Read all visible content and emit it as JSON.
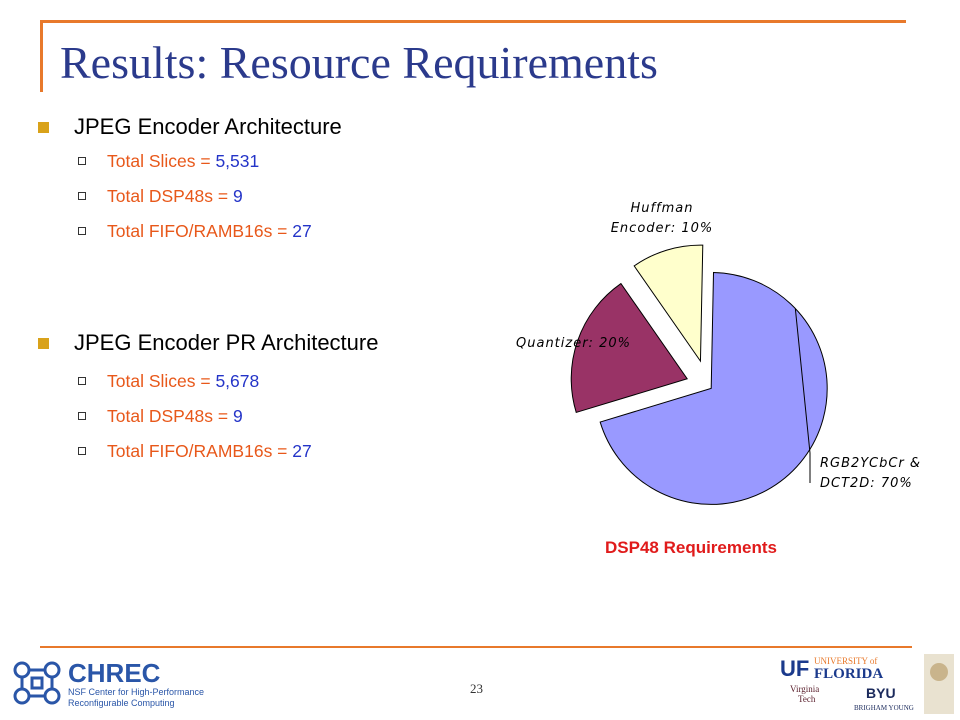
{
  "slide": {
    "title": "Results: Resource Requirements",
    "page_number": "23"
  },
  "sections": [
    {
      "heading": "JPEG Encoder Architecture",
      "items": [
        {
          "label": "Total Slices = ",
          "value": "5,531"
        },
        {
          "label": "Total DSP48s = ",
          "value": "9"
        },
        {
          "label": "Total FIFO/RAMB16s = ",
          "value": "27"
        }
      ]
    },
    {
      "heading": "JPEG Encoder PR Architecture",
      "items": [
        {
          "label": "Total Slices = ",
          "value": "5,678"
        },
        {
          "label": "Total DSP48s = ",
          "value": "9"
        },
        {
          "label": "Total FIFO/RAMB16s = ",
          "value": "27"
        }
      ]
    }
  ],
  "chart_data": {
    "type": "pie",
    "title": "DSP48 Requirements",
    "slices": [
      {
        "label_line1": "RGB2YCbCr &",
        "label_line2": "DCT2D: 70%",
        "value": 70,
        "color": "#9999ff"
      },
      {
        "label_line1": "Quantizer: 20%",
        "label_line2": "",
        "value": 20,
        "color": "#993366"
      },
      {
        "label_line1": "Huffman",
        "label_line2": "Encoder: 10%",
        "value": 10,
        "color": "#ffffcc"
      }
    ],
    "exploded": true,
    "legend": "none"
  },
  "logos": {
    "chrec": {
      "name": "CHREC",
      "line1": "NSF Center for High-Performance",
      "line2": "Reconfigurable Computing"
    },
    "uf": {
      "mark": "UF",
      "line1": "UNIVERSITY of",
      "line2": "FLORIDA"
    },
    "vt": {
      "line1": "Virginia",
      "line2": "Tech"
    },
    "byu": {
      "mark": "BYU",
      "line1": "BRIGHAM YOUNG"
    }
  },
  "colors": {
    "accent": "#e8792b",
    "title": "#2b3a8c",
    "label_orange": "#e8581a",
    "value_blue": "#2434c8",
    "chart_title": "#e01b1b"
  }
}
